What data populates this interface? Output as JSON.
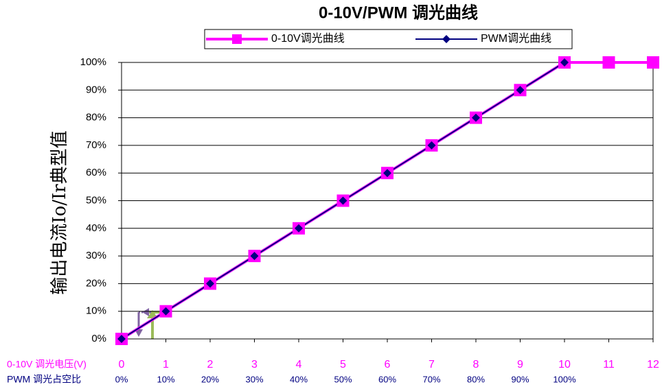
{
  "chart_data": {
    "type": "line",
    "title": "0-10V/PWM 调光曲线",
    "y_axis_label": "输出电流Io/Ir典型值",
    "x_axis_label": "0-10V 调光电压(V)",
    "x2_axis_label": "PWM 调光占空比",
    "x": [
      0,
      1,
      2,
      3,
      4,
      5,
      6,
      7,
      8,
      9,
      10,
      11,
      12
    ],
    "xlim": [
      0,
      12
    ],
    "xticks": [
      0,
      1,
      2,
      3,
      4,
      5,
      6,
      7,
      8,
      9,
      10,
      11,
      12
    ],
    "x2ticks": [
      {
        "value": 0,
        "label": "0%"
      },
      {
        "value": 1,
        "label": "10%"
      },
      {
        "value": 2,
        "label": "20%"
      },
      {
        "value": 3,
        "label": "30%"
      },
      {
        "value": 4,
        "label": "40%"
      },
      {
        "value": 5,
        "label": "50%"
      },
      {
        "value": 6,
        "label": "60%"
      },
      {
        "value": 7,
        "label": "70%"
      },
      {
        "value": 8,
        "label": "80%"
      },
      {
        "value": 9,
        "label": "90%"
      },
      {
        "value": 10,
        "label": "100%"
      }
    ],
    "ylim": [
      0,
      100
    ],
    "yticks": [
      {
        "value": 0,
        "label": "0%"
      },
      {
        "value": 10,
        "label": "10%"
      },
      {
        "value": 20,
        "label": "20%"
      },
      {
        "value": 30,
        "label": "30%"
      },
      {
        "value": 40,
        "label": "40%"
      },
      {
        "value": 50,
        "label": "50%"
      },
      {
        "value": 60,
        "label": "60%"
      },
      {
        "value": 70,
        "label": "70%"
      },
      {
        "value": 80,
        "label": "80%"
      },
      {
        "value": 90,
        "label": "90%"
      },
      {
        "value": 100,
        "label": "100%"
      }
    ],
    "grid": true,
    "legend": "top",
    "series": [
      {
        "name": "0-10V调光曲线",
        "color": "#ff00ff",
        "marker": "square",
        "values": [
          0,
          10,
          20,
          30,
          40,
          50,
          60,
          70,
          80,
          90,
          100,
          100,
          100
        ]
      },
      {
        "name": "PWM调光曲线",
        "color": "#000080",
        "marker": "diamond",
        "values": [
          0,
          10,
          20,
          30,
          40,
          50,
          60,
          70,
          80,
          90,
          100,
          null,
          null
        ]
      }
    ]
  }
}
